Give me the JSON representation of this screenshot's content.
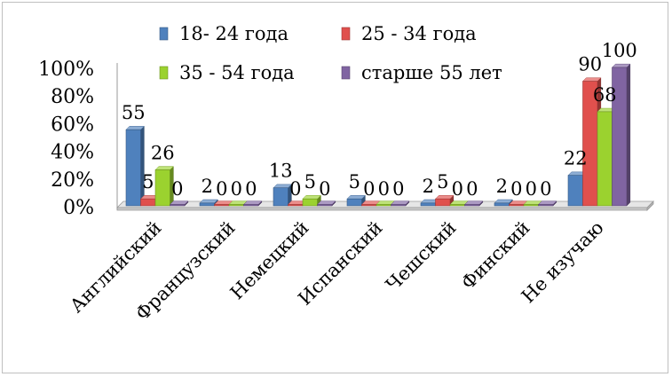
{
  "chart_data": {
    "type": "bar",
    "title": "",
    "xlabel": "",
    "ylabel": "",
    "ylim": [
      0,
      100
    ],
    "yticks": [
      "0%",
      "20%",
      "40%",
      "60%",
      "80%",
      "100%"
    ],
    "categories": [
      "Английский",
      "Французский",
      "Немецкий",
      "Испанский",
      "Чешский",
      "Финский",
      "Не изучаю"
    ],
    "series": [
      {
        "name": "18- 24 года",
        "color": "#4f81bd",
        "values": [
          55,
          2,
          13,
          5,
          2,
          2,
          22
        ]
      },
      {
        "name": "25 - 34 года",
        "color": "#e0504d",
        "values": [
          5,
          0,
          0,
          0,
          5,
          0,
          90
        ]
      },
      {
        "name": "35 - 54 года",
        "color": "#9bd22f",
        "values": [
          26,
          0,
          5,
          0,
          0,
          0,
          68
        ]
      },
      {
        "name": "старше 55 лет",
        "color": "#8064a2",
        "values": [
          0,
          0,
          0,
          0,
          0,
          0,
          100
        ]
      }
    ],
    "data_labels": [
      [
        "55",
        "5",
        "26",
        "0"
      ],
      [
        "2",
        "0",
        "0",
        "0"
      ],
      [
        "13",
        "0",
        "5",
        "0"
      ],
      [
        "5",
        "0",
        "0",
        "0"
      ],
      [
        "2",
        "5",
        "0",
        "0"
      ],
      [
        "2",
        "0",
        "0",
        "0"
      ],
      [
        "22",
        "90",
        "68",
        "100"
      ]
    ],
    "legend_position": "top",
    "grid": false
  }
}
